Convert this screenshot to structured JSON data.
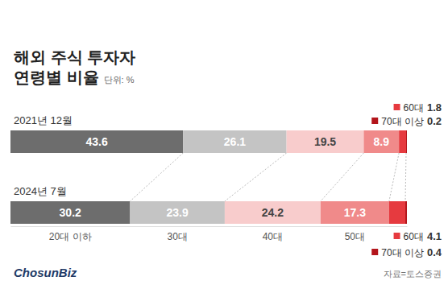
{
  "chart_data": {
    "type": "bar",
    "orientation": "horizontal",
    "stacked": true,
    "data_labels": true,
    "tick_labels": false,
    "title": "해외 주식 투자자 연령별 비율",
    "unit": "단위: %",
    "source": "자료=토스증권",
    "brand": "ChosunBiz",
    "categories": [
      "2021년 12월",
      "2024년 7월"
    ],
    "series": [
      {
        "name": "20대 이하",
        "color": "#6d6d6d",
        "values": [
          43.6,
          30.2
        ]
      },
      {
        "name": "30대",
        "color": "#c4c4c4",
        "values": [
          26.1,
          23.9
        ]
      },
      {
        "name": "40대",
        "color": "#f8cccc",
        "values": [
          19.5,
          24.2
        ]
      },
      {
        "name": "50대",
        "color": "#f08a8a",
        "values": [
          8.9,
          17.3
        ]
      },
      {
        "name": "60대",
        "color": "#e63a3f",
        "values": [
          1.8,
          4.1
        ]
      },
      {
        "name": "70대 이상",
        "color": "#b3151b",
        "values": [
          0.2,
          0.4
        ]
      }
    ],
    "xlim": [
      0,
      100.1
    ],
    "xticks": []
  }
}
